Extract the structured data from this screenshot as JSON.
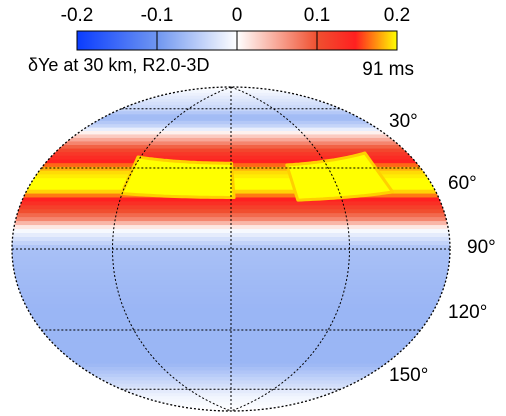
{
  "chart_data": {
    "type": "heatmap",
    "title": "δYe at 30 km, R2.0-3D",
    "time_label": "91 ms",
    "projection": "hammer",
    "colorbar": {
      "ticks": [
        "-0.2",
        "-0.1",
        "0",
        "0.1",
        "0.2"
      ],
      "range": [
        -0.2,
        0.2
      ],
      "colors": {
        "-0.2": "#0a3cff",
        "-0.1": "#6f96f0",
        "0": "#ffffff",
        "0.1": "#f05030",
        "0.15": "#ff2020",
        "0.2": "#ffff00"
      }
    },
    "latitude_labels": [
      "30°",
      "60°",
      "90°",
      "120°",
      "150°"
    ],
    "latitude_lines_deg": [
      30,
      60,
      90,
      120,
      150
    ],
    "longitude_lines_deg": [
      -90,
      0,
      90
    ],
    "field_profile": {
      "theta_deg": [
        0,
        15,
        20,
        25,
        30,
        35,
        40,
        45,
        50,
        55,
        60,
        65,
        70,
        75,
        80,
        90,
        120,
        150,
        160,
        170,
        180
      ],
      "value": [
        0.0,
        -0.04,
        -0.07,
        -0.04,
        0.02,
        0.07,
        0.12,
        0.15,
        0.19,
        0.2,
        0.2,
        0.15,
        0.11,
        0.07,
        0.0,
        -0.06,
        -0.07,
        -0.07,
        -0.04,
        -0.01,
        0.0
      ]
    },
    "hot_lobes": [
      {
        "lon_center_deg": -45,
        "lon_width_deg": 95,
        "theta_center_deg": 55,
        "peak": 0.2
      },
      {
        "lon_center_deg": 95,
        "lon_width_deg": 85,
        "theta_center_deg": 57,
        "peak": 0.2
      }
    ]
  }
}
